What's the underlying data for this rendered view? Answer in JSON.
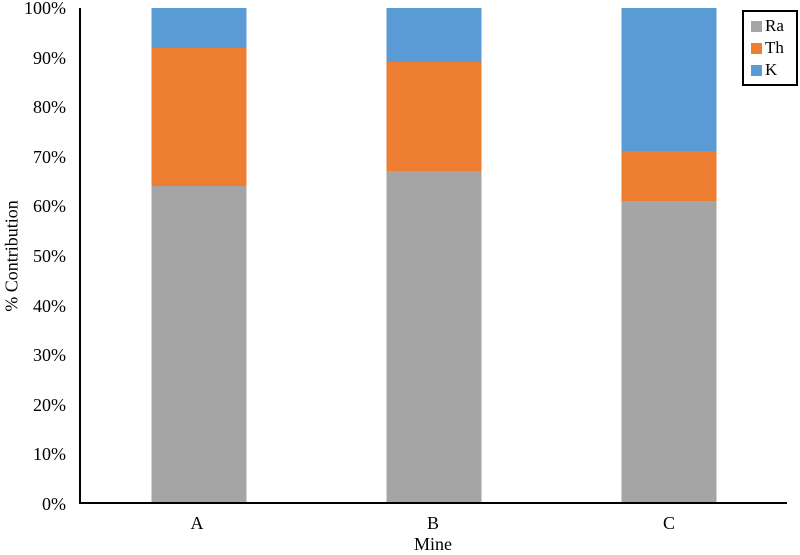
{
  "chart_data": {
    "type": "bar",
    "stacked": true,
    "orientation": "vertical",
    "xlabel": "Mine",
    "ylabel": "% Contribution",
    "categories": [
      "A",
      "B",
      "C"
    ],
    "series": [
      {
        "name": "Ra",
        "color": "#a5a5a5",
        "values": [
          64,
          67,
          61
        ]
      },
      {
        "name": "Th",
        "color": "#ed7d31",
        "values": [
          28,
          22,
          10
        ]
      },
      {
        "name": "K",
        "color": "#5b9bd5",
        "values": [
          8,
          11,
          29
        ]
      }
    ],
    "ylim": [
      0,
      100
    ],
    "ytick_labels": [
      "0%",
      "10%",
      "20%",
      "30%",
      "40%",
      "50%",
      "60%",
      "70%",
      "80%",
      "90%",
      "100%"
    ],
    "grid": false,
    "legend": {
      "position": "top-right",
      "border_color": "#000000",
      "entries": [
        "Ra",
        "Th",
        "K"
      ]
    },
    "axis_color": "#000000",
    "background": "#ffffff"
  }
}
